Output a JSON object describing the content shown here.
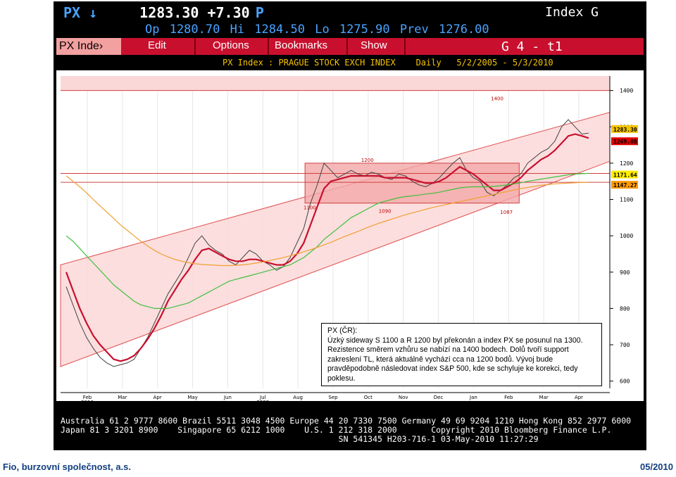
{
  "header": {
    "ticker": "PX ↓",
    "last_price": "1283.30",
    "change": "+7.30",
    "price_flag": "P",
    "index_label": "Index G",
    "open": "Op 1280.70",
    "high": "Hi 1284.50",
    "low": "Lo 1275.90",
    "prev": "Prev 1276.00"
  },
  "menu": {
    "security": "PX Inde›",
    "edit": "Edit",
    "options": "Options",
    "bookmarks": "Bookmarks",
    "show": "Show",
    "page": "G 4 - t1"
  },
  "subtitle": {
    "security": "PX Index",
    "separator": ":",
    "name": "PRAGUE STOCK EXCH INDEX",
    "period": "Daily",
    "range": "5/2/2005 - 5/3/2010"
  },
  "chart_data": {
    "type": "line",
    "x_ticks": [
      "Feb",
      "Mar",
      "Apr",
      "May",
      "Jun",
      "Jul",
      "Aug",
      "Sep",
      "Oct",
      "Nov",
      "Dec",
      "Jan",
      "Feb",
      "Mar",
      "Apr"
    ],
    "x_year_labels": [
      {
        "label": "2009",
        "at": "Jul"
      },
      {
        "label": "2010",
        "at": "Feb"
      }
    ],
    "y_ticks": [
      600,
      700,
      800,
      900,
      1000,
      1100,
      1200,
      1300,
      1400
    ],
    "ylim": [
      580,
      1440
    ],
    "price_tags": [
      {
        "value": "1283.30",
        "color": "#f5c400"
      },
      {
        "value": "1269.08",
        "color": "#e00000"
      },
      {
        "value": "1171.64",
        "color": "#ffee00"
      },
      {
        "value": "1147.27",
        "color": "#ff9900"
      }
    ],
    "annotations": [
      {
        "label": "1400",
        "x": "Apr",
        "y": 1400
      },
      {
        "label": "1200",
        "x": "Sep",
        "y": 1200
      },
      {
        "label": "1100",
        "x": "Aug",
        "y": 1100
      },
      {
        "label": "1090",
        "x": "Oct",
        "y": 1090
      },
      {
        "label": "1087",
        "x": "Feb",
        "y": 1087
      }
    ],
    "series": [
      {
        "values": [
          860,
          810,
          760,
          720,
          690,
          665,
          650,
          640,
          645,
          650,
          660,
          690,
          720,
          760,
          800,
          840,
          870,
          900,
          940,
          980,
          1000,
          975,
          960,
          950,
          930,
          920,
          940,
          960,
          950,
          930,
          920,
          905,
          915,
          940,
          980,
          1020,
          1090,
          1140,
          1200,
          1180,
          1160,
          1170,
          1180,
          1170,
          1165,
          1175,
          1170,
          1160,
          1155,
          1170,
          1165,
          1150,
          1140,
          1135,
          1145,
          1160,
          1180,
          1200,
          1215,
          1180,
          1160,
          1150,
          1120,
          1110,
          1125,
          1140,
          1160,
          1170,
          1200,
          1215,
          1230,
          1240,
          1260,
          1300,
          1320,
          1300,
          1280,
          1283
        ],
        "color": "#444444"
      },
      {
        "values": [
          900,
          850,
          800,
          760,
          725,
          700,
          680,
          660,
          655,
          660,
          670,
          690,
          715,
          745,
          780,
          820,
          850,
          880,
          905,
          935,
          960,
          965,
          955,
          945,
          935,
          930,
          930,
          935,
          935,
          930,
          925,
          920,
          920,
          930,
          950,
          980,
          1030,
          1080,
          1130,
          1150,
          1155,
          1160,
          1165,
          1165,
          1165,
          1165,
          1165,
          1160,
          1160,
          1160,
          1160,
          1155,
          1150,
          1145,
          1145,
          1150,
          1160,
          1175,
          1190,
          1180,
          1170,
          1155,
          1140,
          1125,
          1125,
          1135,
          1145,
          1160,
          1180,
          1195,
          1210,
          1220,
          1235,
          1255,
          1275,
          1280,
          1275,
          1269
        ],
        "color": "#c8102e"
      },
      {
        "values": [
          1000,
          985,
          965,
          945,
          925,
          905,
          885,
          865,
          850,
          835,
          820,
          810,
          805,
          800,
          800,
          800,
          805,
          810,
          815,
          825,
          835,
          845,
          855,
          865,
          875,
          880,
          885,
          890,
          895,
          900,
          905,
          910,
          915,
          920,
          930,
          940,
          955,
          970,
          990,
          1005,
          1020,
          1035,
          1050,
          1060,
          1070,
          1080,
          1090,
          1095,
          1100,
          1105,
          1108,
          1110,
          1112,
          1115,
          1117,
          1120,
          1124,
          1128,
          1132,
          1134,
          1135,
          1135,
          1135,
          1136,
          1138,
          1140,
          1143,
          1146,
          1150,
          1153,
          1156,
          1159,
          1162,
          1165,
          1168,
          1170,
          1171,
          1172
        ],
        "color": "#3fbf3f"
      },
      {
        "values": [
          1165,
          1150,
          1135,
          1118,
          1100,
          1082,
          1065,
          1048,
          1030,
          1015,
          1000,
          985,
          972,
          960,
          950,
          942,
          935,
          930,
          926,
          923,
          921,
          920,
          919,
          918,
          918,
          919,
          920,
          922,
          925,
          928,
          932,
          936,
          940,
          945,
          950,
          956,
          962,
          968,
          975,
          982,
          990,
          998,
          1005,
          1012,
          1020,
          1027,
          1034,
          1040,
          1046,
          1052,
          1058,
          1063,
          1068,
          1073,
          1078,
          1082,
          1086,
          1090,
          1094,
          1098,
          1102,
          1106,
          1110,
          1114,
          1118,
          1122,
          1126,
          1130,
          1133,
          1136,
          1139,
          1141,
          1143,
          1144,
          1145,
          1146,
          1147,
          1147
        ],
        "color": "#f0a030"
      }
    ]
  },
  "note": {
    "title": "PX (ČR):",
    "body": "Úzký sideway S 1100 a R 1200 byl překonán a index PX se posunul na 1300. Rezistence směrem vzhůru se nabízí na 1400 bodech. Dolů tvoří support zakreslení TL, která aktuálně vychází cca na 1200 bodů. Vývoj bude pravděpodobně následovat index S&P 500, kde se schyluje ke korekci, tedy poklesu."
  },
  "footer": {
    "line1": "Australia 61 2 9777 8600 Brazil 5511 3048 4500 Europe 44 20 7330 7500 Germany 49 69 9204 1210 Hong Kong 852 2977 6000",
    "line2": "Japan 81 3 3201 8900    Singapore 65 6212 1000    U.S. 1 212 318 2000       Copyright 2010 Bloomberg Finance L.P.",
    "line3": "                                                         SN 541345 H203-716-1 03-May-2010 11:27:29"
  },
  "page_footer": {
    "left": "Fio, burzovní společnost, a.s.",
    "right": "05/2010"
  },
  "colors": {
    "terminal_bg": "#000000",
    "menu_red": "#c8102e",
    "accent_yellow": "#f5c400",
    "accent_blue": "#4aa3ff",
    "channel_fill": "#fbd8d8",
    "footer_blue": "#123f80"
  }
}
